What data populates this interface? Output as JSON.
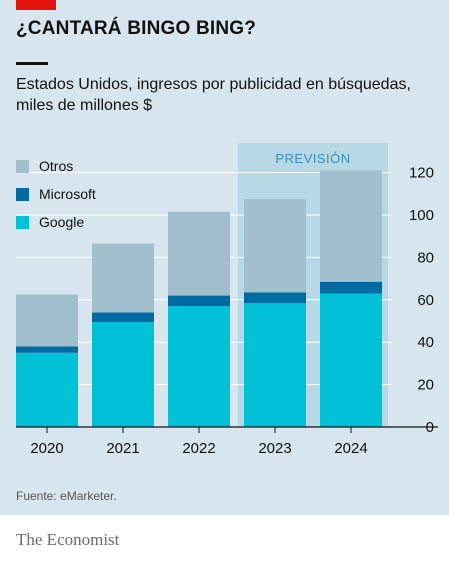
{
  "header": {
    "title": "¿CANTARÁ BINGO BING?",
    "subtitle": "Estados Unidos, ingresos por publicidad en búsquedas, miles de millones $"
  },
  "chart_data": {
    "type": "bar",
    "stacked": true,
    "categories": [
      "2020",
      "2021",
      "2022",
      "2023",
      "2024"
    ],
    "series": [
      {
        "name": "Google",
        "color": "#00c1d5",
        "values": [
          35,
          49.5,
          57,
          58.5,
          63
        ]
      },
      {
        "name": "Microsoft",
        "color": "#006ba2",
        "values": [
          3,
          4.5,
          5,
          5,
          5.5
        ]
      },
      {
        "name": "Otros",
        "color": "#a2bfcd",
        "values": [
          24.5,
          32.5,
          39.5,
          44,
          52.5
        ]
      }
    ],
    "yticks": [
      0,
      20,
      40,
      60,
      80,
      100,
      120
    ],
    "ylim": [
      0,
      125
    ],
    "y_axis_side": "right",
    "grid": true,
    "legend_position": "top-left",
    "forecast": {
      "label": "PREVISIÓN",
      "categories": [
        "2023",
        "2024"
      ],
      "color": "#b7d8e5"
    }
  },
  "source": "Fuente: eMarketer.",
  "brand": "The Economist"
}
